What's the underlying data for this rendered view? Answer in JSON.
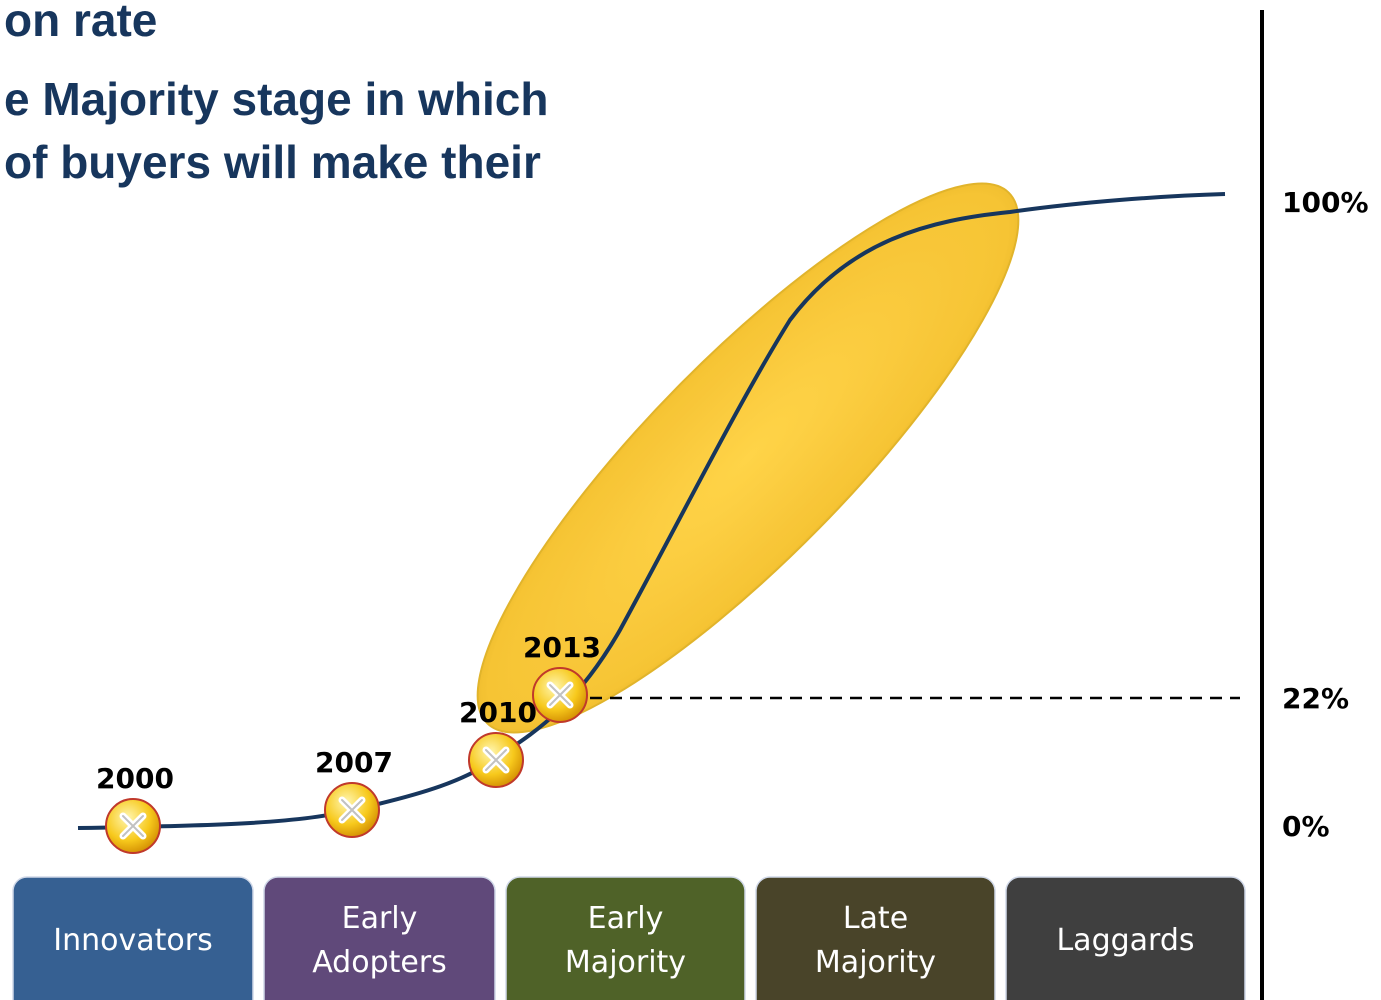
{
  "header": {
    "lines": [
      "on rate",
      "e Majority stage in which",
      "of buyers will make their"
    ]
  },
  "axis_labels": [
    "100%",
    "22%",
    "0%"
  ],
  "markers": [
    "2000",
    "2007",
    "2010",
    "2013"
  ],
  "stages": [
    [
      "Innovators"
    ],
    [
      "Early",
      "Adopters"
    ],
    [
      "Early",
      "Majority"
    ],
    [
      "Late",
      "Majority"
    ],
    [
      "Laggards"
    ]
  ]
}
